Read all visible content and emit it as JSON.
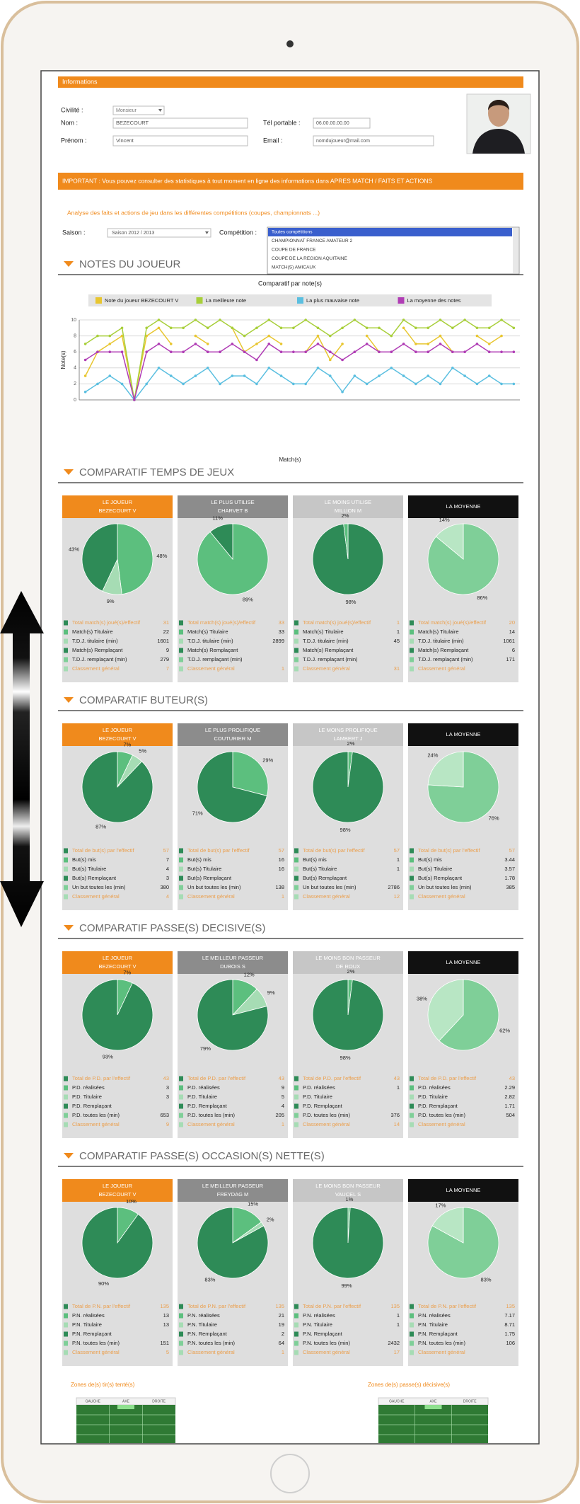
{
  "header": {
    "bar_title": "Informations"
  },
  "profile": {
    "civility_label": "Civilité :",
    "civility": "Monsieur",
    "name_label": "Nom :",
    "name": "BEZECOURT",
    "first_name_label": "Prénom :",
    "first_name": "Vincent",
    "phone_label": "Tél portable :",
    "phone": "06.00.00.00.00",
    "email_label": "Email :",
    "email": "nomdujoueur@mail.com"
  },
  "notice": "IMPORTANT : Vous pouvez consulter des statistiques à tout moment en ligne des informations dans APRES MATCH / FAITS ET ACTIONS",
  "intro": "Analyse des faits et actions de jeu dans les différentes compétitions (coupes, championnats ...)",
  "filters": {
    "season_label": "Saison :",
    "season": "Saison 2012 / 2013",
    "competition_label": "Compétition :",
    "competitions": [
      "Toutes compétitions",
      "CHAMPIONNAT FRANCE AMATEUR 2",
      "COUPE DE FRANCE",
      "COUPE DE LA REGION AQUITAINE",
      "MATCH(S) AMICAUX"
    ],
    "selected": 0
  },
  "notes_section": {
    "title": "NOTES DU JOUEUR"
  },
  "chart_data": {
    "type": "line",
    "title": "Comparatif par note(s)",
    "x_label": "Match(s)",
    "y_label": "Note(s)",
    "categories": [
      null,
      null,
      null,
      null,
      null,
      null,
      null,
      null,
      null,
      null,
      null,
      null,
      null,
      null,
      null,
      null,
      null,
      null,
      null,
      null,
      null,
      null,
      null,
      null,
      null,
      null,
      null,
      null,
      null,
      null,
      null,
      null,
      null,
      null,
      null,
      null
    ],
    "series": [
      {
        "name": "Note du joueur BEZECOURT V",
        "color": "#e8c630",
        "values": [
          3,
          6,
          7,
          8,
          0,
          8,
          9,
          7,
          null,
          8,
          7,
          null,
          9,
          6,
          7,
          8,
          7,
          null,
          6,
          8,
          5,
          7,
          null,
          8,
          6,
          null,
          9,
          7,
          7,
          8,
          6,
          null,
          8,
          7,
          8,
          null
        ]
      },
      {
        "name": "La meilleure note",
        "color": "#a8cf3a",
        "values": [
          7,
          8,
          8,
          9,
          0,
          9,
          10,
          9,
          9,
          10,
          9,
          10,
          9,
          8,
          9,
          10,
          9,
          9,
          10,
          9,
          8,
          9,
          10,
          9,
          9,
          8,
          10,
          9,
          9,
          10,
          9,
          10,
          9,
          9,
          10,
          9
        ]
      },
      {
        "name": "La plus mauvaise note",
        "color": "#5bbfe0",
        "values": [
          1,
          2,
          3,
          2,
          0,
          2,
          4,
          3,
          2,
          3,
          4,
          2,
          3,
          3,
          2,
          4,
          3,
          2,
          2,
          4,
          3,
          1,
          3,
          2,
          3,
          4,
          3,
          2,
          3,
          2,
          4,
          3,
          2,
          3,
          2,
          2
        ]
      },
      {
        "name": "La moyenne des notes",
        "color": "#b03db5",
        "values": [
          5,
          6,
          6,
          6,
          0,
          6,
          7,
          6,
          6,
          7,
          6,
          6,
          7,
          6,
          5,
          7,
          6,
          6,
          6,
          7,
          6,
          5,
          6,
          7,
          6,
          6,
          7,
          6,
          6,
          7,
          6,
          6,
          7,
          6,
          6,
          6
        ]
      }
    ],
    "ylim": [
      0,
      10
    ],
    "yticks": [
      0,
      2,
      4,
      6,
      8,
      10
    ],
    "grid": true,
    "legend": "top"
  },
  "settings": {
    "column_colors": [
      "#f08a1c",
      "#8c8c8c",
      "#c6c6c6",
      "#111111"
    ]
  },
  "sections": [
    {
      "title": "COMPARATIF TEMPS DE JEUX",
      "total_label": "Total match(s) joué(s)/effectif",
      "row_labels": [
        "Match(s) Titulaire",
        "T.D.J. titulaire (min)",
        "Match(s) Remplaçant",
        "T.D.J. remplaçant (min)"
      ],
      "rank_label": "Classement général",
      "cards": [
        {
          "header": [
            "LE JOUEUR",
            "BEZECOURT V"
          ],
          "pie": {
            "values": [
              48,
              9,
              43
            ],
            "value_labels": [
              "48%",
              "9%",
              "43%"
            ],
            "colors": [
              "#5cbf7e",
              "#a6dcb4",
              "#2e8b57"
            ]
          },
          "total": 31,
          "stats": [
            22,
            1601,
            9,
            279
          ],
          "rank": 7
        },
        {
          "header": [
            "LE PLUS UTILISE",
            "CHARVET B"
          ],
          "pie": {
            "values": [
              89,
              11
            ],
            "value_labels": [
              "89%",
              "11%"
            ],
            "colors": [
              "#5cbf7e",
              "#2e8b57"
            ]
          },
          "total": 33,
          "stats": [
            33,
            2899,
            null,
            null
          ],
          "rank": 1
        },
        {
          "header": [
            "LE MOINS UTILISE",
            "MILLION M"
          ],
          "pie": {
            "values": [
              98,
              2
            ],
            "value_labels": [
              "98%",
              "2%"
            ],
            "colors": [
              "#2e8b57",
              "#5cbf7e"
            ]
          },
          "total": 1,
          "stats": [
            1,
            45,
            null,
            null
          ],
          "rank": 31
        },
        {
          "header": [
            "LA MOYENNE"
          ],
          "pie": {
            "values": [
              86,
              14
            ],
            "value_labels": [
              "86%",
              "14%"
            ],
            "colors": [
              "#7fcf98",
              "#b8e6c4"
            ]
          },
          "total": 20,
          "stats": [
            14,
            1061,
            6,
            171
          ],
          "rank": null
        }
      ]
    },
    {
      "title": "COMPARATIF BUTEUR(S)",
      "total_label": "Total de but(s) par l'effectif",
      "row_labels": [
        "But(s) mis",
        "But(s) Titulaire",
        "But(s) Remplaçant",
        "Un but toutes les (min)"
      ],
      "rank_label": "Classement général",
      "cards": [
        {
          "header": [
            "LE JOUEUR",
            "BEZECOURT V"
          ],
          "pie": {
            "values": [
              7,
              5,
              87
            ],
            "value_labels": [
              "7%",
              "5%",
              "87%"
            ],
            "colors": [
              "#5cbf7e",
              "#a6dcb4",
              "#2e8b57"
            ]
          },
          "total": 57,
          "stats": [
            7,
            4,
            3,
            380
          ],
          "rank": 4
        },
        {
          "header": [
            "LE PLUS PROLIFIQUE",
            "COUTURIER M"
          ],
          "pie": {
            "values": [
              29,
              71
            ],
            "value_labels": [
              "29%",
              "71%"
            ],
            "colors": [
              "#5cbf7e",
              "#2e8b57"
            ]
          },
          "total": 57,
          "stats": [
            16,
            16,
            null,
            138
          ],
          "rank": 1
        },
        {
          "header": [
            "LE MOINS PROLIFIQUE",
            "LAMBERT J"
          ],
          "pie": {
            "values": [
              2,
              98
            ],
            "value_labels": [
              "2%",
              "98%"
            ],
            "colors": [
              "#5cbf7e",
              "#2e8b57"
            ]
          },
          "total": 57,
          "stats": [
            1,
            1,
            null,
            2786
          ],
          "rank": 12
        },
        {
          "header": [
            "LA MOYENNE"
          ],
          "pie": {
            "values": [
              76,
              24
            ],
            "value_labels": [
              "76%",
              "24%"
            ],
            "colors": [
              "#7fcf98",
              "#b8e6c4"
            ]
          },
          "total": 57,
          "stats": [
            3.44,
            3.57,
            1.78,
            385
          ],
          "rank": null
        }
      ]
    },
    {
      "title": "COMPARATIF PASSE(S) DECISIVE(S)",
      "total_label": "Total de P.D. par l'effectif",
      "row_labels": [
        "P.D. réalisées",
        "P.D. Titulaire",
        "P.D. Remplaçant",
        "P.D. toutes les (min)"
      ],
      "rank_label": "Classement général",
      "cards": [
        {
          "header": [
            "LE JOUEUR",
            "BEZECOURT V"
          ],
          "pie": {
            "values": [
              7,
              93
            ],
            "value_labels": [
              "7%",
              "93%"
            ],
            "colors": [
              "#5cbf7e",
              "#2e8b57"
            ]
          },
          "total": 43,
          "stats": [
            3,
            3,
            null,
            653
          ],
          "rank": 9
        },
        {
          "header": [
            "LE MEILLEUR PASSEUR",
            "DUBOIS S"
          ],
          "pie": {
            "values": [
              12,
              9,
              79
            ],
            "value_labels": [
              "12%",
              "9%",
              "79%"
            ],
            "colors": [
              "#5cbf7e",
              "#a6dcb4",
              "#2e8b57"
            ]
          },
          "total": 43,
          "stats": [
            9,
            5,
            4,
            205
          ],
          "rank": 1
        },
        {
          "header": [
            "LE MOINS BON PASSEUR",
            "DE ROUX"
          ],
          "pie": {
            "values": [
              2,
              98
            ],
            "value_labels": [
              "2%",
              "98%"
            ],
            "colors": [
              "#5cbf7e",
              "#2e8b57"
            ]
          },
          "total": 43,
          "stats": [
            1,
            null,
            null,
            376
          ],
          "rank": 14
        },
        {
          "header": [
            "LA MOYENNE"
          ],
          "pie": {
            "values": [
              62,
              38
            ],
            "value_labels": [
              "62%",
              "38%"
            ],
            "colors": [
              "#7fcf98",
              "#b8e6c4"
            ]
          },
          "total": 43,
          "stats": [
            2.29,
            2.82,
            1.71,
            504
          ],
          "rank": null
        }
      ]
    },
    {
      "title": "COMPARATIF PASSE(S) OCCASION(S) NETTE(S)",
      "total_label": "Total de P.N. par l'effectif",
      "row_labels": [
        "P.N. réalisées",
        "P.N. Titulaire",
        "P.N. Remplaçant",
        "P.N. toutes les (min)"
      ],
      "rank_label": "Classement général",
      "cards": [
        {
          "header": [
            "LE JOUEUR",
            "BEZECOURT V"
          ],
          "pie": {
            "values": [
              10,
              90
            ],
            "value_labels": [
              "10%",
              "90%"
            ],
            "colors": [
              "#5cbf7e",
              "#2e8b57"
            ]
          },
          "total": 135,
          "stats": [
            13,
            13,
            null,
            151
          ],
          "rank": 5
        },
        {
          "header": [
            "LE MEILLEUR PASSEUR",
            "FREYDAG M"
          ],
          "pie": {
            "values": [
              15,
              2,
              83
            ],
            "value_labels": [
              "15%",
              "2%",
              "83%"
            ],
            "colors": [
              "#5cbf7e",
              "#a6dcb4",
              "#2e8b57"
            ]
          },
          "total": 135,
          "stats": [
            21,
            19,
            2,
            64
          ],
          "rank": 1
        },
        {
          "header": [
            "LE MOINS BON PASSEUR",
            "VAUCEL S"
          ],
          "pie": {
            "values": [
              1,
              99
            ],
            "value_labels": [
              "1%",
              "99%"
            ],
            "colors": [
              "#5cbf7e",
              "#2e8b57"
            ]
          },
          "total": 135,
          "stats": [
            1,
            1,
            null,
            2432
          ],
          "rank": 17
        },
        {
          "header": [
            "LA MOYENNE"
          ],
          "pie": {
            "values": [
              83,
              17
            ],
            "value_labels": [
              "83%",
              "17%"
            ],
            "colors": [
              "#7fcf98",
              "#b8e6c4"
            ]
          },
          "total": 135,
          "stats": [
            7.17,
            8.71,
            1.75,
            106
          ],
          "rank": null
        }
      ]
    }
  ],
  "zones": [
    {
      "title": "Zones de(s) tir(s) tenté(s)",
      "columns": [
        "GAUCHE",
        "AXE",
        "DROITE"
      ]
    },
    {
      "title": "Zones de(s) passe(s) décisive(s)",
      "columns": [
        "GAUCHE",
        "AXE",
        "DROITE"
      ]
    }
  ]
}
